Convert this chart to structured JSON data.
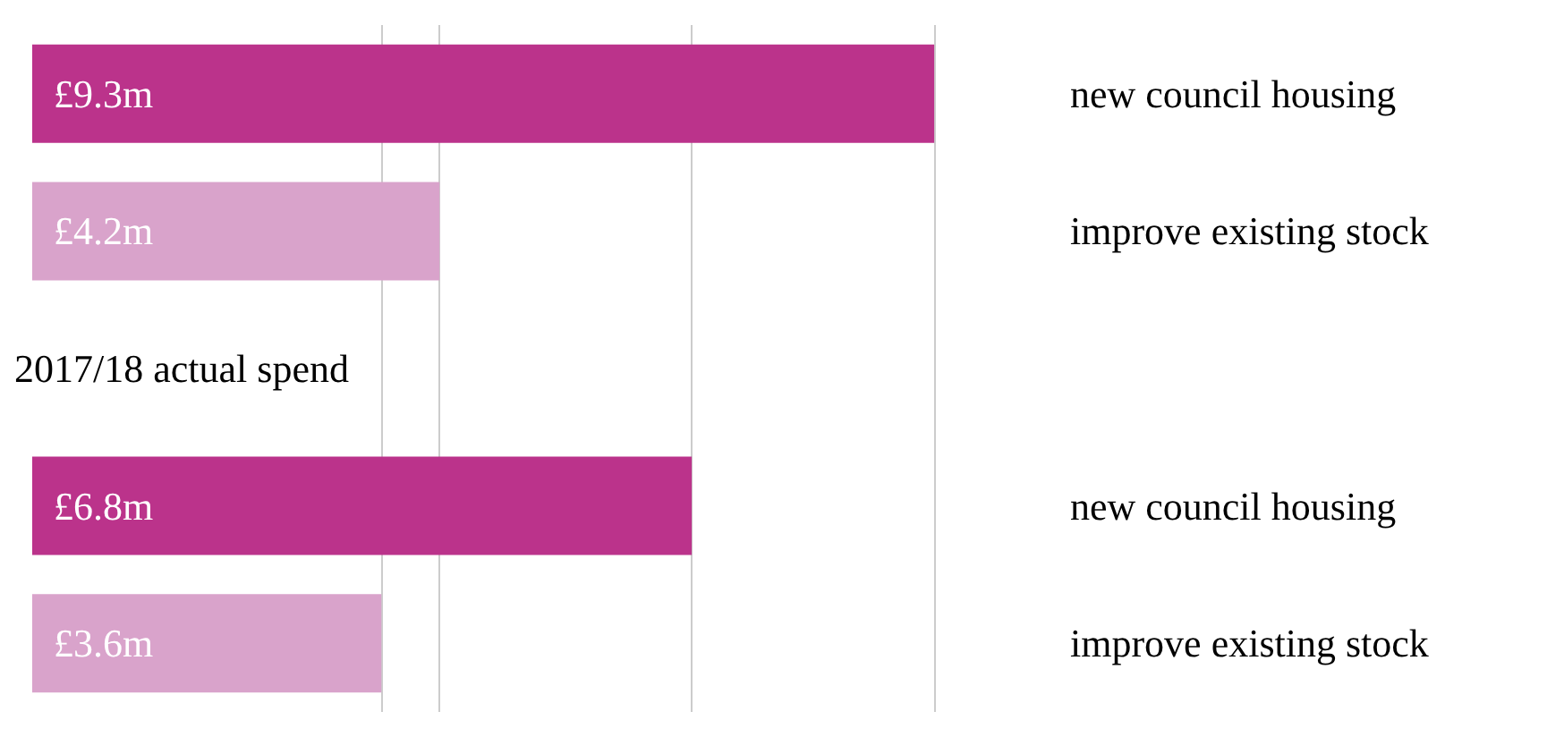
{
  "chart_data": {
    "type": "bar",
    "orientation": "horizontal",
    "categories": [
      "new council housing",
      "improve existing stock",
      null,
      "new council housing",
      "improve existing stock"
    ],
    "values": [
      9.3,
      4.2,
      null,
      6.8,
      3.6
    ],
    "colors": [
      "#bb338b",
      "#d9a3cb",
      null,
      "#bb338b",
      "#d9a3cb"
    ],
    "value_labels": [
      "£9.3m",
      "£4.2m",
      null,
      "£6.8m",
      "£3.6m"
    ],
    "annotations": [
      "2017/18 actual spend"
    ],
    "ref_lines": [
      {
        "axis": "x",
        "value": 3.6,
        "color": "#cccccc"
      },
      {
        "axis": "x",
        "value": 4.2,
        "color": "#cccccc"
      },
      {
        "axis": "x",
        "value": 6.8,
        "color": "#cccccc"
      },
      {
        "axis": "x",
        "value": 9.3,
        "color": "#cccccc"
      }
    ],
    "tick_labels": "y",
    "grid": false
  }
}
